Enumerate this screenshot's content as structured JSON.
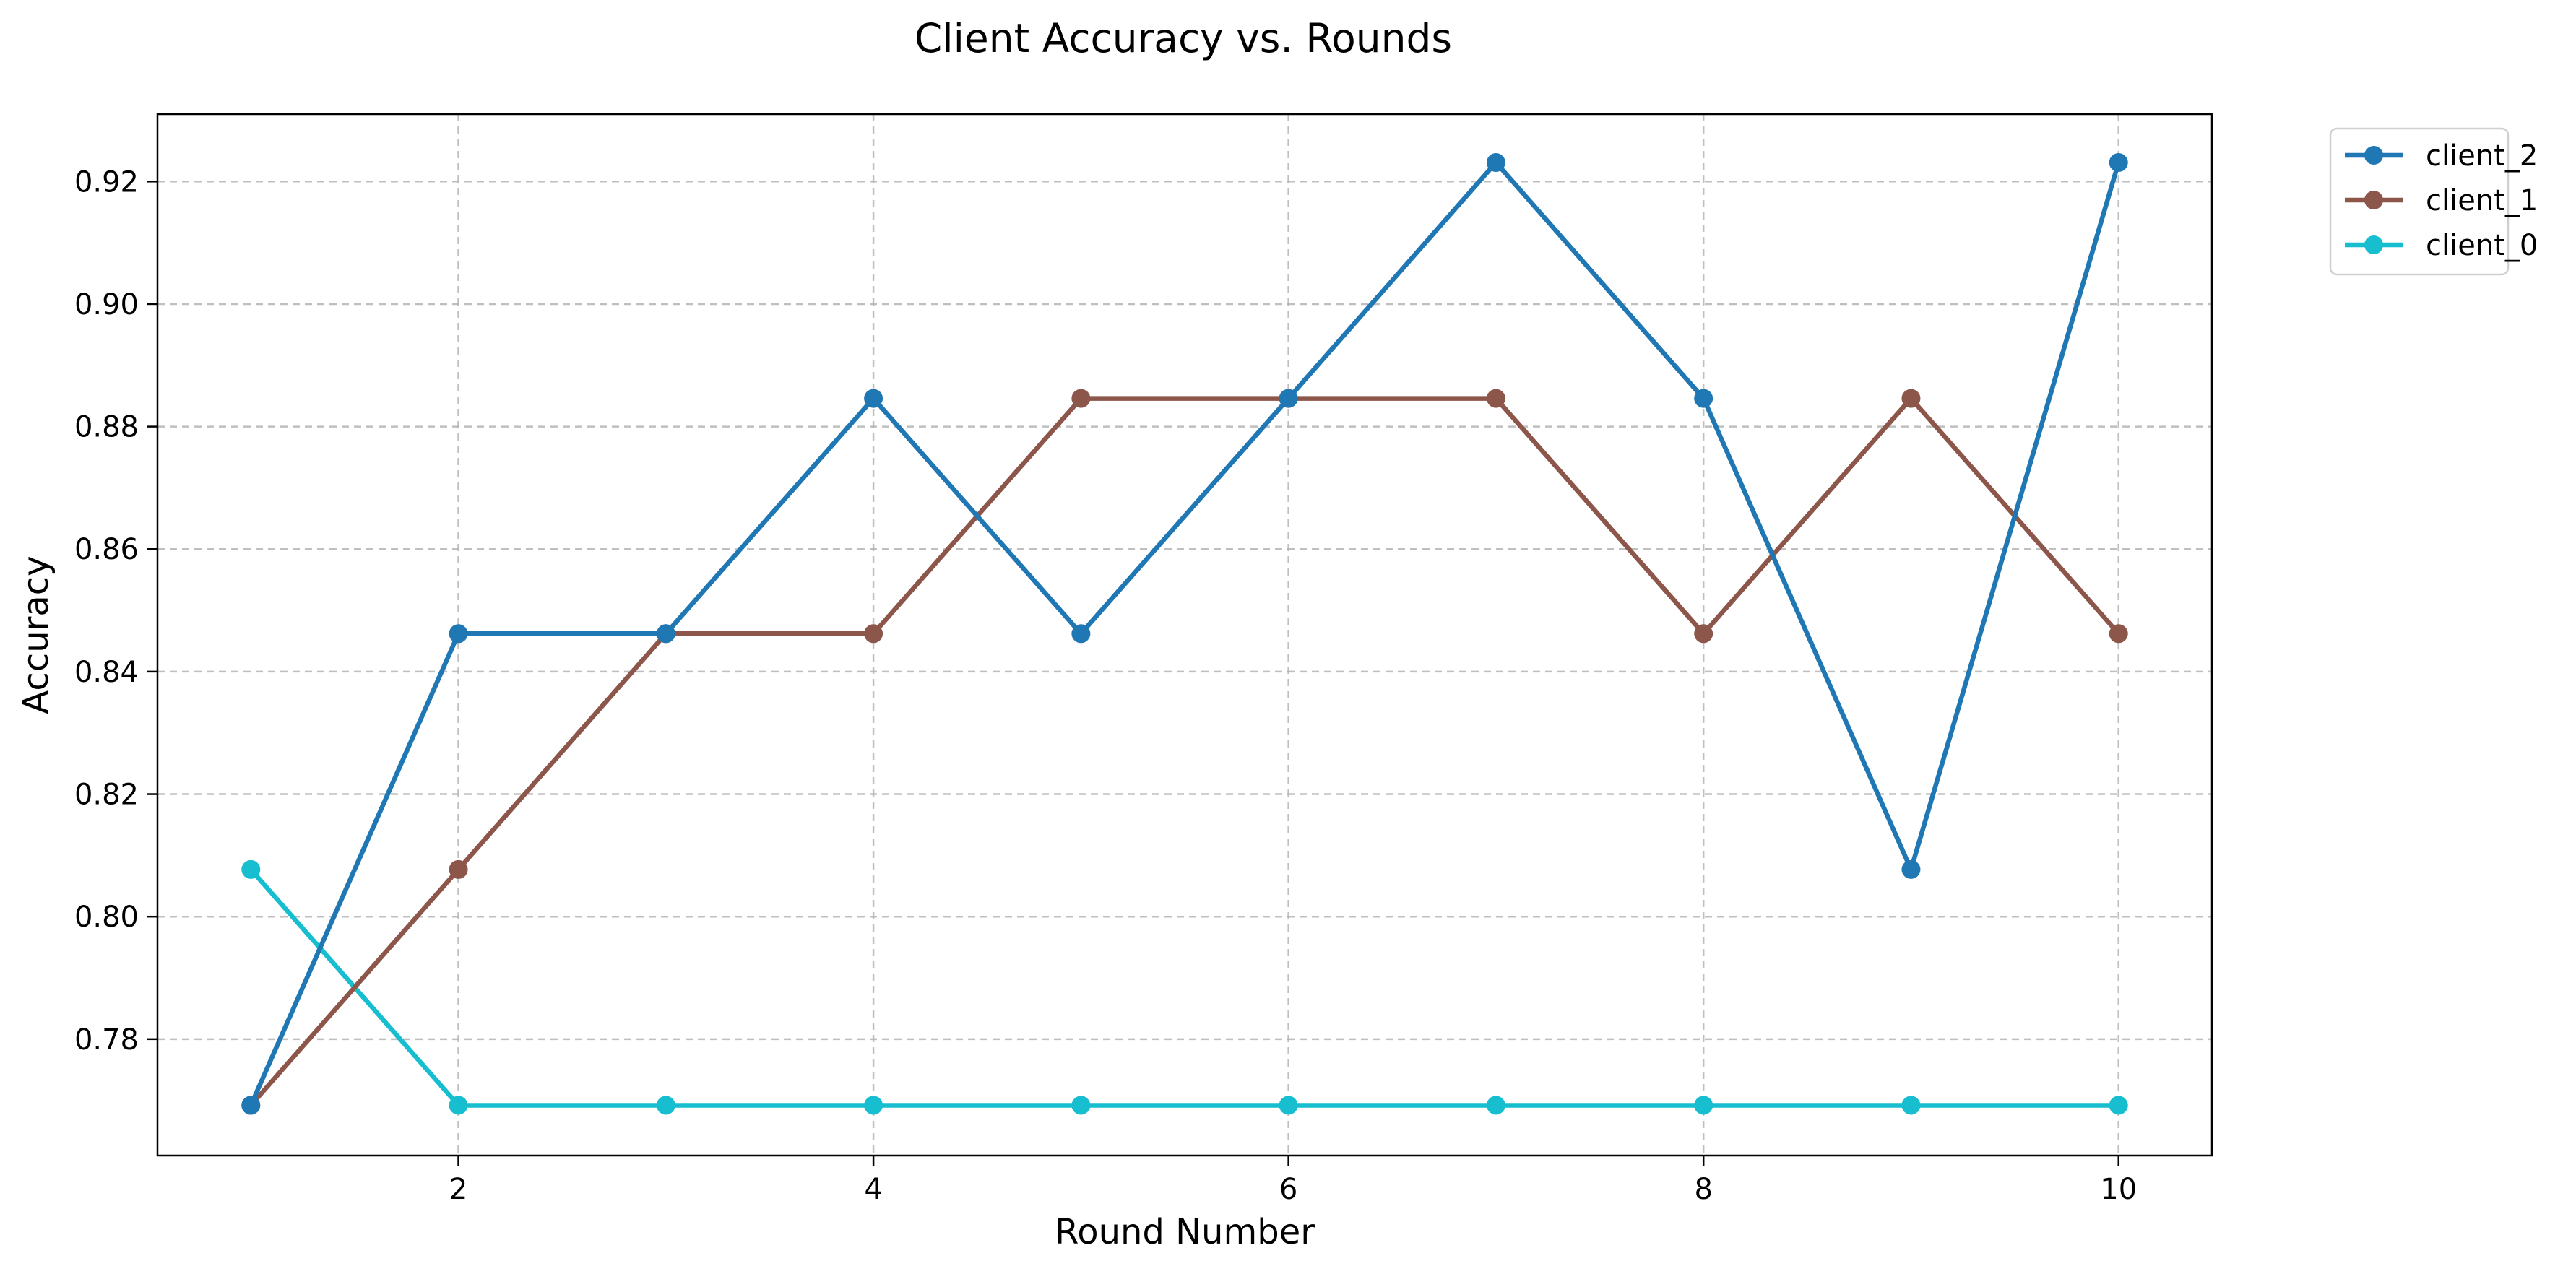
{
  "chart_data": {
    "type": "line",
    "title": "Client Accuracy vs. Rounds",
    "xlabel": "Round Number",
    "ylabel": "Accuracy",
    "x": [
      1,
      2,
      3,
      4,
      5,
      6,
      7,
      8,
      9,
      10
    ],
    "xlim": [
      0.55,
      10.45
    ],
    "ylim": [
      0.761,
      0.931
    ],
    "xticks": [
      2,
      4,
      6,
      8,
      10
    ],
    "xtick_labels": [
      "2",
      "4",
      "6",
      "8",
      "10"
    ],
    "yticks": [
      0.78,
      0.8,
      0.82,
      0.84,
      0.86,
      0.88,
      0.9,
      0.92
    ],
    "ytick_labels": [
      "0.78",
      "0.80",
      "0.82",
      "0.84",
      "0.86",
      "0.88",
      "0.90",
      "0.92"
    ],
    "grid": true,
    "legend_position": "outside-top-right",
    "series": [
      {
        "name": "client_2",
        "color": "#1f77b4",
        "values": [
          0.7692,
          0.8462,
          0.8462,
          0.8846,
          0.8462,
          0.8846,
          0.9231,
          0.8846,
          0.8077,
          0.9231
        ]
      },
      {
        "name": "client_1",
        "color": "#8c564b",
        "values": [
          0.7692,
          0.8077,
          0.8462,
          0.8462,
          0.8846,
          0.8846,
          0.8846,
          0.8462,
          0.8846,
          0.8462
        ]
      },
      {
        "name": "client_0",
        "color": "#17becf",
        "values": [
          0.8077,
          0.7692,
          0.7692,
          0.7692,
          0.7692,
          0.7692,
          0.7692,
          0.7692,
          0.7692,
          0.7692
        ]
      }
    ]
  }
}
